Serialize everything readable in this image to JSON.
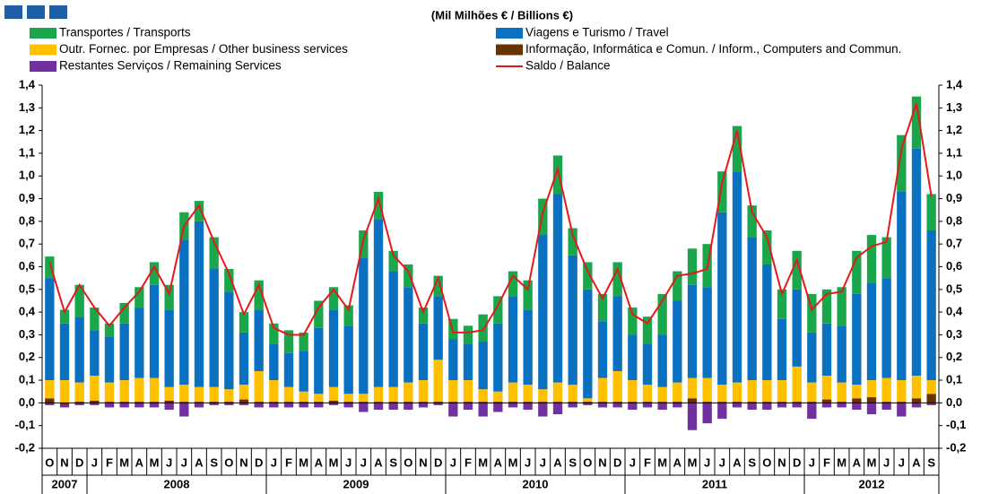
{
  "chart_data": {
    "type": "bar",
    "stacked": true,
    "title": "(Mil Milhões € / Billions €)",
    "categories": [
      "O",
      "N",
      "D",
      "J",
      "F",
      "M",
      "A",
      "M",
      "J",
      "J",
      "A",
      "S",
      "O",
      "N",
      "D",
      "J",
      "F",
      "M",
      "A",
      "M",
      "J",
      "J",
      "A",
      "S",
      "O",
      "N",
      "D",
      "J",
      "F",
      "M",
      "A",
      "M",
      "J",
      "J",
      "A",
      "S",
      "O",
      "N",
      "D",
      "J",
      "F",
      "M",
      "A",
      "M",
      "J",
      "J",
      "A",
      "S",
      "O",
      "N",
      "D",
      "J",
      "F",
      "M",
      "A",
      "M",
      "J",
      "J",
      "A",
      "S"
    ],
    "years": [
      "2007",
      "2008",
      "2009",
      "2010",
      "2011",
      "2012"
    ],
    "ylim": [
      -0.2,
      1.4
    ],
    "yticks": [
      {
        "value": -0.2,
        "label": "-0,2"
      },
      {
        "value": -0.1,
        "label": "-0,1"
      },
      {
        "value": 0,
        "label": "0,0"
      },
      {
        "value": 0.1,
        "label": "0,1"
      },
      {
        "value": 0.2,
        "label": "0,2"
      },
      {
        "value": 0.3,
        "label": "0,3"
      },
      {
        "value": 0.4,
        "label": "0,4"
      },
      {
        "value": 0.5,
        "label": "0,5"
      },
      {
        "value": 0.6,
        "label": "0,6"
      },
      {
        "value": 0.7,
        "label": "0,7"
      },
      {
        "value": 0.8,
        "label": "0,8"
      },
      {
        "value": 0.9,
        "label": "0,9"
      },
      {
        "value": 1.0,
        "label": "1,0"
      },
      {
        "value": 1.1,
        "label": "1,1"
      },
      {
        "value": 1.2,
        "label": "1,2"
      },
      {
        "value": 1.3,
        "label": "1,3"
      },
      {
        "value": 1.4,
        "label": "1,4"
      }
    ],
    "series": [
      {
        "name": "Transportes / Transports",
        "color": "#1aa64b",
        "values": [
          0.095,
          0.06,
          0.14,
          0.1,
          0.06,
          0.09,
          0.09,
          0.1,
          0.11,
          0.12,
          0.09,
          0.14,
          0.1,
          0.09,
          0.13,
          0.09,
          0.1,
          0.08,
          0.12,
          0.1,
          0.09,
          0.12,
          0.12,
          0.09,
          0.1,
          0.07,
          0.09,
          0.09,
          0.08,
          0.12,
          0.12,
          0.11,
          0.13,
          0.16,
          0.17,
          0.12,
          0.12,
          0.12,
          0.15,
          0.12,
          0.12,
          0.18,
          0.13,
          0.16,
          0.19,
          0.18,
          0.2,
          0.14,
          0.15,
          0.13,
          0.17,
          0.17,
          0.15,
          0.17,
          0.19,
          0.21,
          0.18,
          0.25,
          0.23,
          0.16
        ]
      },
      {
        "name": "Viagens e Turismo / Travel",
        "color": "#0a70c0",
        "values": [
          0.45,
          0.25,
          0.29,
          0.2,
          0.2,
          0.25,
          0.31,
          0.41,
          0.34,
          0.64,
          0.73,
          0.52,
          0.43,
          0.23,
          0.27,
          0.16,
          0.15,
          0.18,
          0.29,
          0.34,
          0.3,
          0.6,
          0.74,
          0.51,
          0.42,
          0.25,
          0.28,
          0.18,
          0.16,
          0.21,
          0.3,
          0.38,
          0.33,
          0.68,
          0.83,
          0.57,
          0.48,
          0.25,
          0.33,
          0.2,
          0.18,
          0.23,
          0.36,
          0.41,
          0.4,
          0.76,
          0.93,
          0.63,
          0.51,
          0.27,
          0.34,
          0.22,
          0.23,
          0.25,
          0.4,
          0.43,
          0.44,
          0.83,
          1.0,
          0.66
        ]
      },
      {
        "name": "Outr. Fornec. por Empresas  / Other business services",
        "color": "#ffc000",
        "values": [
          0.08,
          0.1,
          0.085,
          0.11,
          0.085,
          0.095,
          0.105,
          0.105,
          0.06,
          0.075,
          0.065,
          0.065,
          0.055,
          0.065,
          0.135,
          0.095,
          0.065,
          0.045,
          0.035,
          0.06,
          0.035,
          0.035,
          0.065,
          0.065,
          0.085,
          0.095,
          0.185,
          0.095,
          0.095,
          0.055,
          0.045,
          0.085,
          0.075,
          0.055,
          0.085,
          0.075,
          0.015,
          0.105,
          0.135,
          0.095,
          0.075,
          0.065,
          0.085,
          0.09,
          0.105,
          0.075,
          0.085,
          0.095,
          0.095,
          0.095,
          0.155,
          0.085,
          0.105,
          0.085,
          0.06,
          0.075,
          0.105,
          0.095,
          0.1,
          0.06
        ]
      },
      {
        "name": "Informação, Informática e Comun. / Inform., Computers and Commun.",
        "color": "#663300",
        "values": [
          0.02,
          -0.01,
          0.005,
          0.01,
          0.005,
          0.005,
          0.005,
          0.005,
          0.01,
          0.005,
          0.005,
          0.005,
          0.005,
          0.015,
          0.005,
          0.005,
          0.005,
          0.005,
          0.005,
          0.01,
          0.005,
          0.005,
          0.005,
          0.005,
          0.005,
          0.005,
          0.005,
          0.005,
          0.005,
          0.005,
          0.005,
          0.005,
          0.005,
          0.005,
          0.005,
          0.005,
          0.005,
          0.005,
          0.005,
          0.005,
          0.005,
          0.005,
          0.005,
          0.02,
          0.005,
          0.005,
          0.005,
          0.005,
          0.005,
          0.005,
          0.005,
          0.005,
          0.015,
          0.005,
          0.02,
          0.025,
          0.005,
          0.005,
          0.02,
          0.04
        ]
      },
      {
        "name": "Restantes Serviços / Remaining Services",
        "color": "#7030a0",
        "values": [
          -0.01,
          -0.01,
          -0.01,
          -0.01,
          -0.02,
          -0.02,
          -0.02,
          -0.02,
          -0.03,
          -0.06,
          -0.02,
          -0.01,
          -0.01,
          -0.01,
          -0.02,
          -0.02,
          -0.02,
          -0.02,
          -0.02,
          -0.01,
          -0.02,
          -0.04,
          -0.03,
          -0.03,
          -0.03,
          -0.02,
          -0.01,
          -0.06,
          -0.03,
          -0.06,
          -0.04,
          -0.02,
          -0.03,
          -0.06,
          -0.05,
          -0.02,
          -0.01,
          -0.02,
          -0.02,
          -0.03,
          -0.02,
          -0.03,
          -0.02,
          -0.12,
          -0.09,
          -0.07,
          -0.02,
          -0.03,
          -0.03,
          -0.02,
          -0.02,
          -0.07,
          -0.02,
          -0.02,
          -0.03,
          -0.05,
          -0.03,
          -0.06,
          -0.02,
          -0.01
        ]
      },
      {
        "name": "Saldo / Balance",
        "color": "#e31a1a",
        "type": "line",
        "values": [
          0.62,
          0.4,
          0.52,
          0.42,
          0.34,
          0.42,
          0.49,
          0.6,
          0.48,
          0.78,
          0.87,
          0.71,
          0.57,
          0.39,
          0.52,
          0.33,
          0.3,
          0.3,
          0.42,
          0.5,
          0.41,
          0.72,
          0.9,
          0.65,
          0.58,
          0.4,
          0.55,
          0.31,
          0.31,
          0.32,
          0.43,
          0.56,
          0.5,
          0.84,
          1.03,
          0.74,
          0.58,
          0.46,
          0.59,
          0.39,
          0.35,
          0.45,
          0.56,
          0.57,
          0.59,
          0.97,
          1.2,
          0.84,
          0.73,
          0.48,
          0.63,
          0.41,
          0.48,
          0.49,
          0.64,
          0.69,
          0.71,
          1.12,
          1.32,
          0.91
        ]
      }
    ]
  }
}
